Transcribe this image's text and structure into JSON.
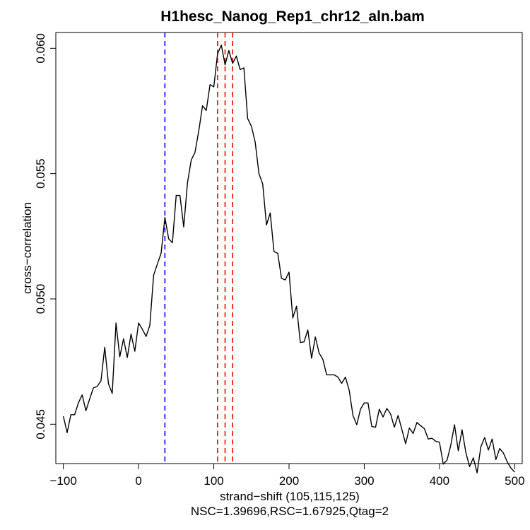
{
  "chart_data": {
    "type": "line",
    "title": "H1hesc_Nanog_Rep1_chr12_aln.bam",
    "xlabel": "strand−shift (105,115,125)",
    "subtitle": "NSC=1.39696,RSC=1.67925,Qtag=2",
    "ylabel": "cross−correlation",
    "xlim": [
      -110,
      510
    ],
    "ylim": [
      0.04343,
      0.06063
    ],
    "x_ticks": [
      -100,
      0,
      100,
      200,
      300,
      400,
      500
    ],
    "x_tick_labels": [
      "−100",
      "0",
      "100",
      "200",
      "300",
      "400",
      "500"
    ],
    "y_ticks": [
      0.045,
      0.05,
      0.055,
      0.06
    ],
    "y_tick_labels": [
      "0.045",
      "0.050",
      "0.055",
      "0.060"
    ],
    "grid": false,
    "series": [
      {
        "color": "#000000",
        "points": [
          [
            -100,
            0.04532
          ],
          [
            -95,
            0.04466
          ],
          [
            -90,
            0.04538
          ],
          [
            -85,
            0.04538
          ],
          [
            -80,
            0.04585
          ],
          [
            -75,
            0.04617
          ],
          [
            -70,
            0.04554
          ],
          [
            -65,
            0.04601
          ],
          [
            -60,
            0.04645
          ],
          [
            -55,
            0.04651
          ],
          [
            -50,
            0.04673
          ],
          [
            -45,
            0.04807
          ],
          [
            -40,
            0.04661
          ],
          [
            -35,
            0.04623
          ],
          [
            -30,
            0.04904
          ],
          [
            -25,
            0.04769
          ],
          [
            -20,
            0.04841
          ],
          [
            -15,
            0.04766
          ],
          [
            -10,
            0.0486
          ],
          [
            -5,
            0.04791
          ],
          [
            0,
            0.04904
          ],
          [
            5,
            0.04879
          ],
          [
            10,
            0.0485
          ],
          [
            15,
            0.04895
          ],
          [
            20,
            0.05095
          ],
          [
            25,
            0.05139
          ],
          [
            30,
            0.05183
          ],
          [
            35,
            0.05325
          ],
          [
            40,
            0.0524
          ],
          [
            45,
            0.05224
          ],
          [
            50,
            0.05413
          ],
          [
            55,
            0.05413
          ],
          [
            60,
            0.05287
          ],
          [
            65,
            0.05463
          ],
          [
            70,
            0.05554
          ],
          [
            75,
            0.05585
          ],
          [
            80,
            0.0567
          ],
          [
            85,
            0.05771
          ],
          [
            90,
            0.05752
          ],
          [
            95,
            0.05855
          ],
          [
            100,
            0.05846
          ],
          [
            105,
            0.05978
          ],
          [
            110,
            0.06013
          ],
          [
            115,
            0.05934
          ],
          [
            120,
            0.05991
          ],
          [
            125,
            0.0594
          ],
          [
            130,
            0.05969
          ],
          [
            135,
            0.05915
          ],
          [
            140,
            0.05922
          ],
          [
            145,
            0.0572
          ],
          [
            150,
            0.05689
          ],
          [
            155,
            0.05626
          ],
          [
            160,
            0.055
          ],
          [
            165,
            0.05459
          ],
          [
            170,
            0.05295
          ],
          [
            175,
            0.05343
          ],
          [
            180,
            0.05189
          ],
          [
            185,
            0.05182
          ],
          [
            190,
            0.05082
          ],
          [
            195,
            0.05076
          ],
          [
            200,
            0.05107
          ],
          [
            205,
            0.04924
          ],
          [
            210,
            0.04971
          ],
          [
            215,
            0.04826
          ],
          [
            220,
            0.04829
          ],
          [
            225,
            0.04876
          ],
          [
            230,
            0.04763
          ],
          [
            235,
            0.04848
          ],
          [
            240,
            0.04784
          ],
          [
            245,
            0.04759
          ],
          [
            250,
            0.04697
          ],
          [
            255,
            0.04697
          ],
          [
            260,
            0.04697
          ],
          [
            265,
            0.04688
          ],
          [
            270,
            0.04663
          ],
          [
            275,
            0.04688
          ],
          [
            280,
            0.04635
          ],
          [
            285,
            0.04535
          ],
          [
            290,
            0.04498
          ],
          [
            295,
            0.0456
          ],
          [
            300,
            0.04585
          ],
          [
            305,
            0.04585
          ],
          [
            310,
            0.04491
          ],
          [
            315,
            0.04488
          ],
          [
            320,
            0.0456
          ],
          [
            325,
            0.04529
          ],
          [
            330,
            0.04563
          ],
          [
            335,
            0.04541
          ],
          [
            340,
            0.04488
          ],
          [
            345,
            0.04535
          ],
          [
            350,
            0.04479
          ],
          [
            355,
            0.04422
          ],
          [
            360,
            0.04485
          ],
          [
            365,
            0.04463
          ],
          [
            370,
            0.04507
          ],
          [
            375,
            0.04494
          ],
          [
            380,
            0.04482
          ],
          [
            385,
            0.04441
          ],
          [
            390,
            0.04444
          ],
          [
            395,
            0.04432
          ],
          [
            400,
            0.04428
          ],
          [
            405,
            0.04341
          ],
          [
            410,
            0.04356
          ],
          [
            415,
            0.04416
          ],
          [
            420,
            0.04498
          ],
          [
            425,
            0.04394
          ],
          [
            430,
            0.04478
          ],
          [
            435,
            0.04388
          ],
          [
            440,
            0.04331
          ],
          [
            445,
            0.04366
          ],
          [
            450,
            0.04306
          ],
          [
            455,
            0.0441
          ],
          [
            460,
            0.04447
          ],
          [
            465,
            0.04397
          ],
          [
            470,
            0.04441
          ],
          [
            475,
            0.04359
          ],
          [
            480,
            0.04403
          ],
          [
            485,
            0.04385
          ],
          [
            490,
            0.0435
          ],
          [
            495,
            0.04325
          ],
          [
            500,
            0.04309
          ]
        ]
      }
    ],
    "vlines": [
      {
        "x": 35,
        "color": "#0000ff",
        "style": "dashed"
      },
      {
        "x": 105,
        "color": "#ff0000",
        "style": "dashed"
      },
      {
        "x": 115,
        "color": "#ff0000",
        "style": "dashed"
      },
      {
        "x": 125,
        "color": "#ff0000",
        "style": "dashed"
      }
    ]
  }
}
